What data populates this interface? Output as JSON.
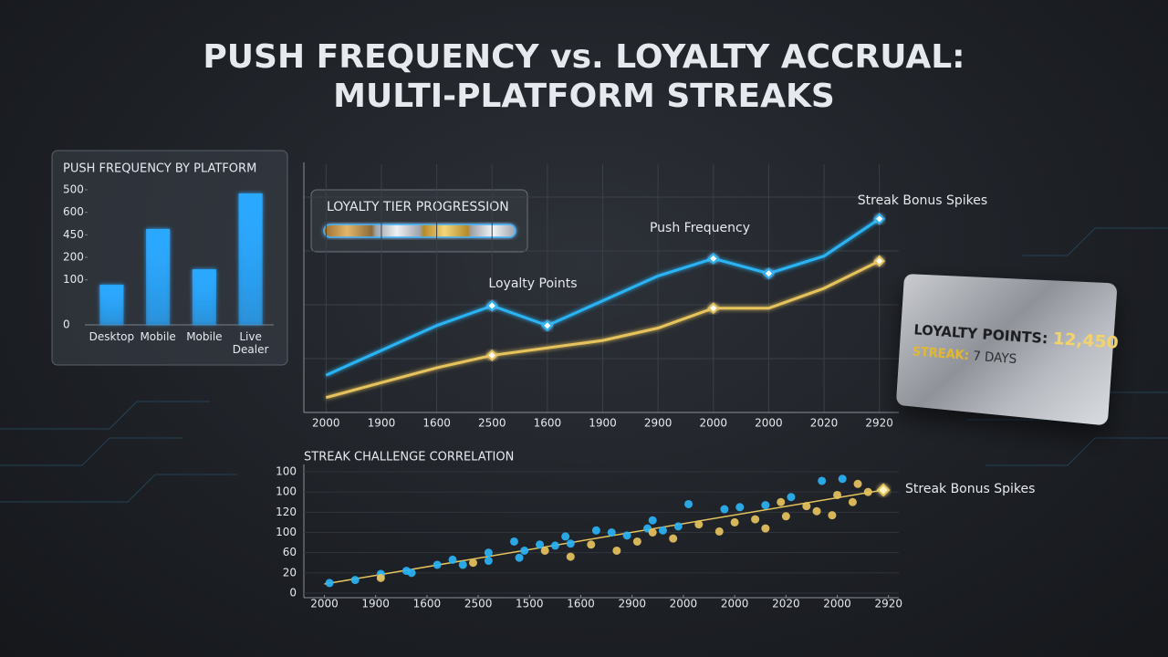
{
  "title": [
    "PUSH FREQUENCY vs. LOYALTY ACCRUAL:",
    "MULTI-PLATFORM STREAKS"
  ],
  "chart_data": [
    {
      "type": "bar",
      "title": "PUSH FREQUENCY BY PLATFORM",
      "categories": [
        "Desktop",
        "Mobile",
        "Mobile",
        "Live Dealer"
      ],
      "values": [
        178,
        426,
        247,
        584
      ],
      "color": "#2aa8ff",
      "ylim": [
        0,
        600
      ],
      "yticks": [
        0,
        {
          "value": 200,
          "label": "100"
        },
        {
          "value": 300,
          "label": "200"
        },
        {
          "value": 400,
          "label": "450"
        },
        {
          "value": 500,
          "label": "600"
        },
        {
          "value": 600,
          "label": "500"
        }
      ]
    },
    {
      "type": "line",
      "categories": [
        "2000",
        "1900",
        "1600",
        "2500",
        "1600",
        "1900",
        "2900",
        "2000",
        "2000",
        "2020",
        "2920"
      ],
      "ylim": [
        0,
        100
      ],
      "grid": true,
      "series": [
        {
          "name": "Push Frequency",
          "color": "#2ab4f5",
          "values": [
            15,
            25,
            35,
            43,
            35,
            45,
            55,
            62,
            56,
            63,
            78
          ]
        },
        {
          "name": "Loyalty Points",
          "color": "#e6c35c",
          "values": [
            6,
            12,
            18,
            23,
            26,
            29,
            34,
            42,
            42,
            50,
            61
          ]
        }
      ],
      "annotation": "Streak Bonus Spikes"
    },
    {
      "type": "scatter",
      "title": "STREAK CHALLENGE CORRELATION",
      "xlim": [
        -0.4,
        11.2
      ],
      "ylim": [
        0,
        120
      ],
      "xticks": [
        {
          "value": 0,
          "label": "2000"
        },
        {
          "value": 1,
          "label": "1900"
        },
        {
          "value": 2,
          "label": "1600"
        },
        {
          "value": 3,
          "label": "2500"
        },
        {
          "value": 4,
          "label": "1500"
        },
        {
          "value": 5,
          "label": "1600"
        },
        {
          "value": 6,
          "label": "2900"
        },
        {
          "value": 7,
          "label": "2000"
        },
        {
          "value": 8,
          "label": "2000"
        },
        {
          "value": 9,
          "label": "2020"
        },
        {
          "value": 10,
          "label": "2000"
        },
        {
          "value": 11,
          "label": "2920"
        }
      ],
      "yticks": [
        0,
        20,
        {
          "value": 40,
          "label": "60"
        },
        {
          "value": 60,
          "label": "100"
        },
        {
          "value": 80,
          "label": "120"
        },
        100,
        {
          "value": 120,
          "label": "100"
        }
      ],
      "series": [
        {
          "color": "#2ab4f5",
          "x": [
            0.1,
            0.6,
            1.1,
            1.1,
            1.6,
            1.7,
            2.2,
            2.5,
            2.7,
            3.2,
            3.2,
            3.7,
            3.8,
            3.9,
            4.2,
            4.5,
            4.7,
            4.8,
            5.3,
            5.6,
            5.9,
            6.3,
            6.4,
            6.6,
            6.9,
            7.1,
            7.8,
            8.1,
            8.6,
            9.1,
            9.7,
            10.1
          ],
          "values": [
            10,
            13,
            17,
            19,
            22,
            20,
            28,
            33,
            28,
            40,
            32,
            51,
            35,
            42,
            48,
            47,
            56,
            49,
            62,
            60,
            57,
            64,
            72,
            62,
            66,
            88,
            83,
            85,
            87,
            95,
            111,
            113
          ]
        },
        {
          "color": "#e6c35c",
          "x": [
            1.1,
            2.9,
            4.3,
            4.8,
            5.2,
            5.7,
            6.1,
            6.4,
            6.8,
            7.3,
            7.7,
            8.0,
            8.4,
            8.6,
            8.9,
            9.0,
            9.4,
            9.6,
            9.9,
            10.0,
            10.3,
            10.4,
            10.6,
            10.9
          ],
          "values": [
            15,
            30,
            42,
            36,
            48,
            42,
            51,
            60,
            54,
            68,
            61,
            70,
            73,
            64,
            90,
            76,
            86,
            81,
            77,
            97,
            90,
            108,
            100,
            102
          ]
        }
      ],
      "trend": {
        "color": "#e6c35c",
        "x": [
          0.0,
          10.9
        ],
        "values": [
          9,
          102
        ]
      },
      "annotation": "Streak Bonus Spikes"
    }
  ],
  "tier_widget": {
    "title": "LOYALTY TIER PROGRESSION"
  },
  "loyalty_card": {
    "points_label": "LOYALTY POINTS:",
    "points_value": "12,450",
    "streak_label": "STREAK:",
    "streak_value": "7 DAYS"
  }
}
